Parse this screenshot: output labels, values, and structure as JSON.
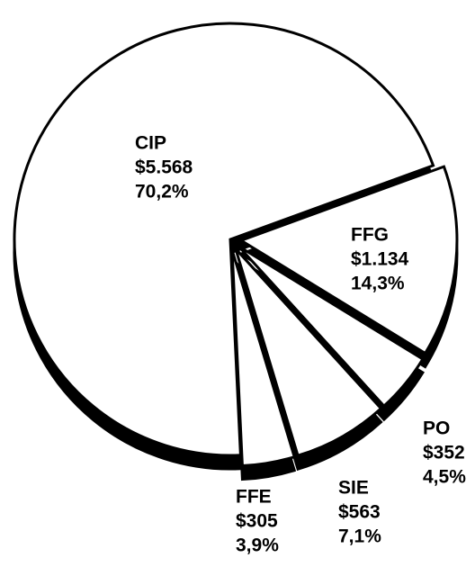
{
  "chart_data": {
    "type": "pie",
    "categories": [
      "CIP",
      "FFG",
      "PO",
      "SIE",
      "FFE"
    ],
    "values": [
      70.2,
      14.3,
      4.5,
      7.1,
      3.9
    ],
    "value_labels": [
      "70,2%",
      "14,3%",
      "4,5%",
      "7,1%",
      "3,9%"
    ],
    "amounts": [
      5568,
      1134,
      352,
      563,
      305
    ],
    "amount_labels": [
      "$5.568",
      "$1.134",
      "$352",
      "$563",
      "$305"
    ],
    "color": "#ffffff",
    "edge_color": "#000000"
  }
}
